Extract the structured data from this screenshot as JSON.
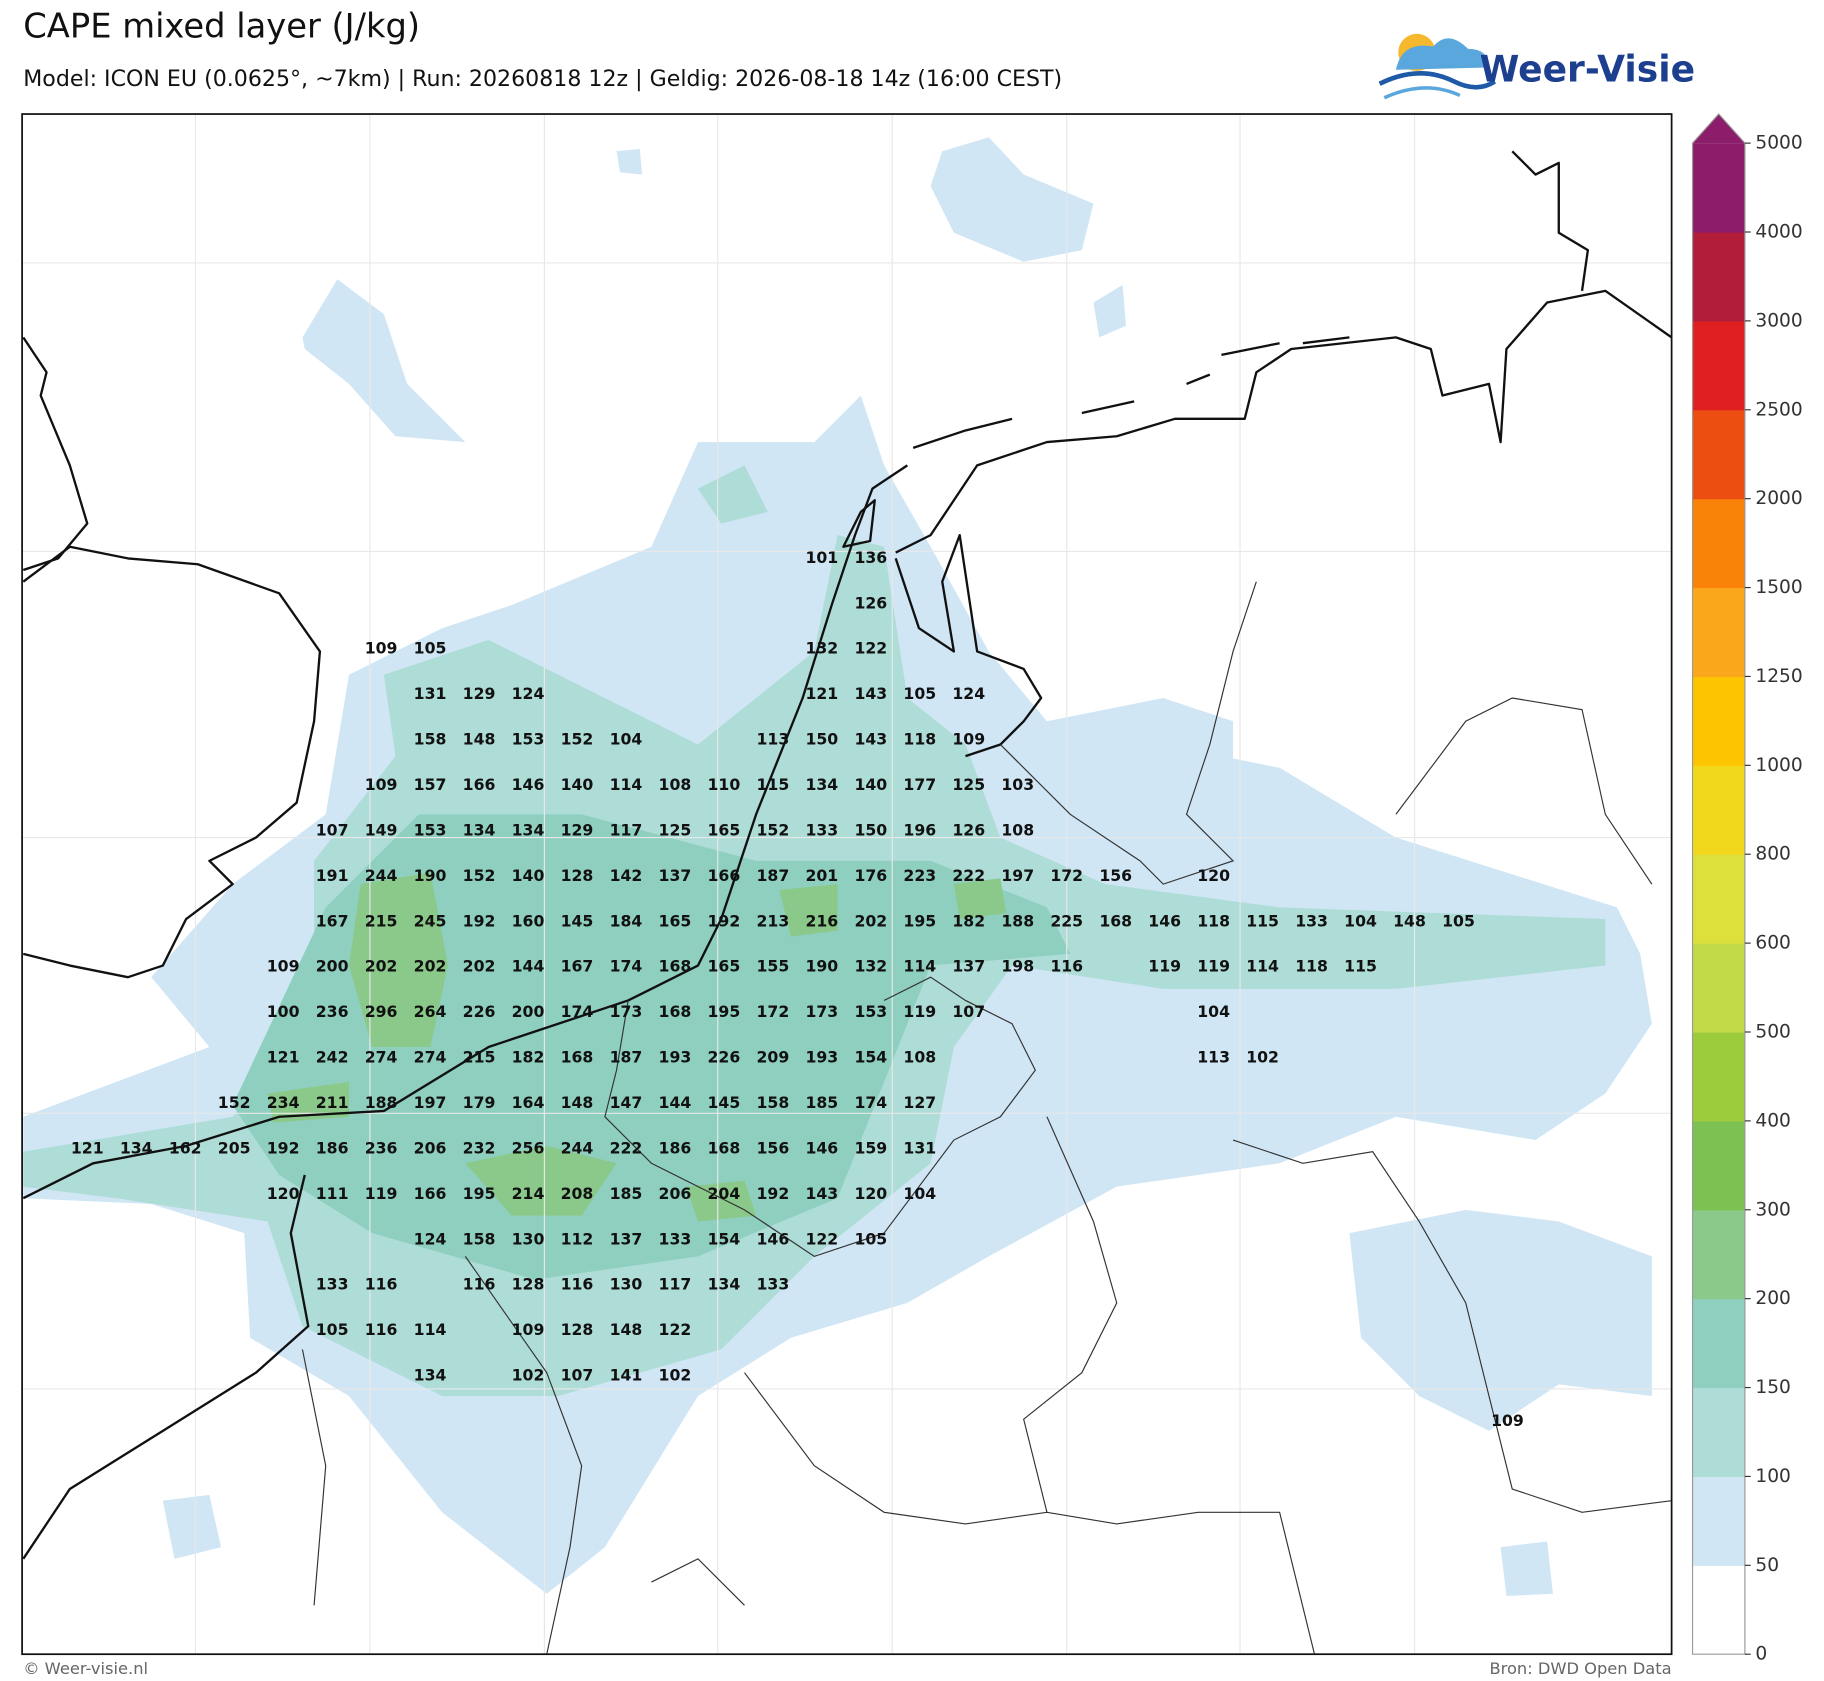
{
  "header": {
    "title": "CAPE mixed layer (J/kg)",
    "subtitle": "Model: ICON EU (0.0625°, ~7km)  |  Run: 20260818 12z  |  Geldig: 2026-08-18 14z (16:00 CEST)"
  },
  "logo": {
    "text": "Weer-Visie"
  },
  "colorbar": {
    "ticks": [
      0,
      50,
      100,
      150,
      200,
      300,
      400,
      500,
      600,
      800,
      1000,
      1250,
      1500,
      2000,
      2500,
      3000,
      4000,
      5000
    ],
    "colors": [
      "#ffffff",
      "#d0e6f5",
      "#aedcd6",
      "#8fcfbf",
      "#8ac98a",
      "#7cc151",
      "#9ccb3c",
      "#c2da48",
      "#dde03a",
      "#f2d81c",
      "#fdc402",
      "#fba71b",
      "#f98308",
      "#ec4e12",
      "#e02020",
      "#b21e3a",
      "#8c1d6a"
    ]
  },
  "grid_values": {
    "rows": [
      [
        null,
        null,
        null,
        null,
        null,
        null,
        null,
        null,
        null,
        null,
        null,
        null,
        null,
        null,
        null,
        101,
        136
      ],
      [
        null,
        null,
        null,
        null,
        null,
        null,
        null,
        null,
        null,
        null,
        null,
        null,
        null,
        null,
        null,
        null,
        126
      ],
      [
        null,
        null,
        null,
        null,
        null,
        null,
        109,
        105,
        null,
        null,
        null,
        null,
        null,
        null,
        null,
        132,
        122
      ],
      [
        null,
        null,
        null,
        null,
        null,
        null,
        null,
        131,
        129,
        124,
        null,
        null,
        null,
        null,
        null,
        121,
        143,
        105,
        124
      ],
      [
        null,
        null,
        null,
        null,
        null,
        null,
        null,
        158,
        148,
        153,
        152,
        104,
        null,
        null,
        113,
        150,
        143,
        118,
        109
      ],
      [
        null,
        null,
        null,
        null,
        null,
        null,
        109,
        157,
        166,
        146,
        140,
        114,
        108,
        110,
        115,
        134,
        140,
        177,
        125,
        103
      ],
      [
        null,
        null,
        null,
        null,
        null,
        107,
        149,
        153,
        134,
        134,
        129,
        117,
        125,
        165,
        152,
        133,
        150,
        196,
        126,
        108
      ],
      [
        null,
        null,
        null,
        null,
        null,
        191,
        244,
        190,
        152,
        140,
        128,
        142,
        137,
        166,
        187,
        201,
        176,
        223,
        222,
        197,
        172,
        156,
        null,
        120
      ],
      [
        null,
        null,
        null,
        null,
        null,
        167,
        215,
        245,
        192,
        160,
        145,
        184,
        165,
        192,
        213,
        216,
        202,
        195,
        182,
        188,
        225,
        168,
        146,
        118,
        115,
        133,
        104,
        148,
        105
      ],
      [
        null,
        null,
        null,
        null,
        109,
        200,
        202,
        202,
        202,
        144,
        167,
        174,
        168,
        165,
        155,
        190,
        132,
        114,
        137,
        198,
        116,
        null,
        119,
        119,
        114,
        118,
        115
      ],
      [
        null,
        null,
        null,
        null,
        100,
        236,
        296,
        264,
        226,
        200,
        174,
        173,
        168,
        195,
        172,
        173,
        153,
        119,
        107,
        null,
        null,
        null,
        null,
        104
      ],
      [
        null,
        null,
        null,
        null,
        121,
        242,
        274,
        274,
        215,
        182,
        168,
        187,
        193,
        226,
        209,
        193,
        154,
        108,
        null,
        null,
        null,
        null,
        null,
        113,
        102
      ],
      [
        null,
        null,
        null,
        152,
        234,
        211,
        188,
        197,
        179,
        164,
        148,
        147,
        144,
        145,
        158,
        185,
        174,
        127
      ],
      [
        121,
        134,
        162,
        205,
        192,
        186,
        236,
        206,
        232,
        256,
        244,
        222,
        186,
        168,
        156,
        146,
        159,
        131
      ],
      [
        null,
        null,
        null,
        null,
        120,
        111,
        119,
        166,
        195,
        214,
        208,
        185,
        206,
        204,
        192,
        143,
        120,
        104
      ],
      [
        null,
        null,
        null,
        null,
        null,
        null,
        null,
        124,
        158,
        130,
        112,
        137,
        133,
        154,
        146,
        122,
        105
      ],
      [
        null,
        null,
        null,
        null,
        null,
        133,
        116,
        null,
        116,
        128,
        116,
        130,
        117,
        134,
        133
      ],
      [
        null,
        null,
        null,
        null,
        null,
        105,
        116,
        114,
        null,
        109,
        128,
        148,
        122
      ],
      [
        null,
        null,
        null,
        null,
        null,
        null,
        null,
        134,
        null,
        102,
        107,
        141,
        102
      ],
      [
        null,
        null,
        null,
        null,
        null,
        null,
        null,
        null,
        null,
        null,
        null,
        null,
        null,
        null,
        null,
        null,
        null,
        null,
        null,
        null,
        null,
        null,
        null,
        null,
        null,
        null,
        null,
        null,
        null,
        109
      ]
    ]
  },
  "footer": {
    "left": "© Weer-visie.nl",
    "right": "Bron: DWD Open Data"
  }
}
